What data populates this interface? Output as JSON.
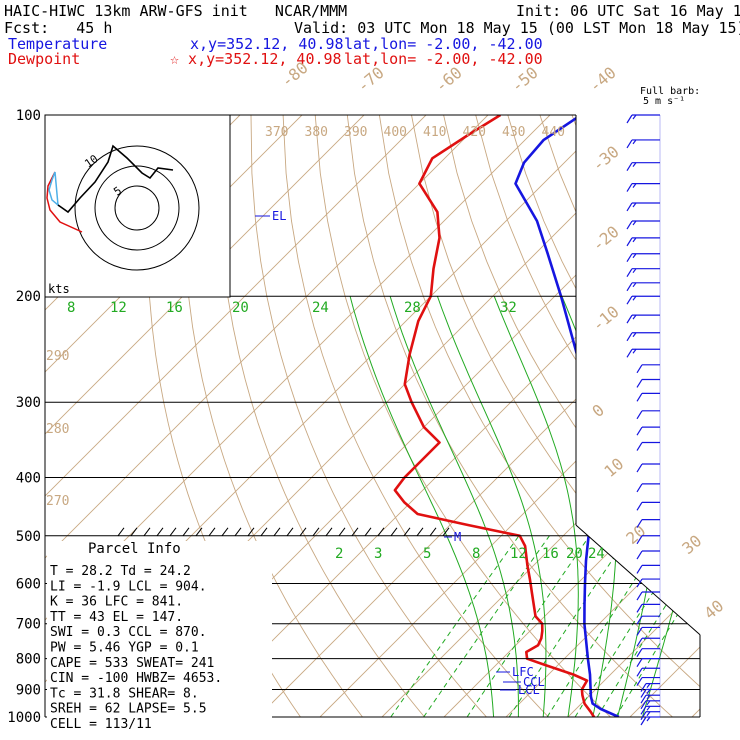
{
  "header": {
    "title": "HAIC-HIWC 13km ARW-GFS init   NCAR/MMM",
    "init": "Init: 06 UTC Sat 16 May 15",
    "fcst": "Fcst:   45 h",
    "valid": "Valid: 03 UTC Mon 18 May 15 (00 LST Mon 18 May 15)",
    "temp_label": "Temperature",
    "temp_xy": "x,y=352.12, 40.98",
    "temp_latlon": "lat,lon= -2.00, -42.00",
    "dew_label": "Dewpoint",
    "dew_xy": "☆ x,y=352.12, 40.98",
    "dew_latlon": "lat,lon= -2.00, -42.00",
    "barb_title": "Full barb:",
    "barb_unit": "5 m s⁻¹"
  },
  "colors": {
    "temperature": "#1616e0",
    "dewpoint": "#e01010",
    "adiabat": "#c8a882",
    "mixing": "#22aa22"
  },
  "chart_data": {
    "type": "line",
    "title": "Skew-T log-P sounding",
    "pressure_levels": [
      {
        "p": 100,
        "label": "100"
      },
      {
        "p": 200,
        "label": "200"
      },
      {
        "p": 300,
        "label": "300"
      },
      {
        "p": 400,
        "label": "400"
      },
      {
        "p": 500,
        "label": "500"
      },
      {
        "p": 600,
        "label": "600"
      },
      {
        "p": 700,
        "label": "700"
      },
      {
        "p": 800,
        "label": "800"
      },
      {
        "p": 900,
        "label": "900"
      },
      {
        "p": 1000,
        "label": "1000"
      }
    ],
    "series": [
      {
        "name": "Temperature",
        "color": "#1616e0",
        "points": [
          [
            1000,
            28.2
          ],
          [
            970,
            24.0
          ],
          [
            950,
            21.8
          ],
          [
            925,
            20.4
          ],
          [
            900,
            19.2
          ],
          [
            850,
            16.7
          ],
          [
            800,
            13.8
          ],
          [
            750,
            10.8
          ],
          [
            700,
            7.6
          ],
          [
            650,
            4.5
          ],
          [
            600,
            1.2
          ],
          [
            550,
            -2.3
          ],
          [
            500,
            -5.9
          ],
          [
            450,
            -9.5
          ],
          [
            400,
            -14.0
          ],
          [
            350,
            -19.8
          ],
          [
            300,
            -27.0
          ],
          [
            250,
            -37.0
          ],
          [
            200,
            -49.0
          ],
          [
            170,
            -58.0
          ],
          [
            150,
            -65.0
          ],
          [
            130,
            -74.5
          ],
          [
            120,
            -76.5
          ],
          [
            110,
            -77.0
          ],
          [
            100,
            -75.0
          ]
        ]
      },
      {
        "name": "Dewpoint",
        "color": "#e01010",
        "points": [
          [
            1000,
            24.2
          ],
          [
            980,
            22.8
          ],
          [
            950,
            20.5
          ],
          [
            920,
            18.8
          ],
          [
            900,
            17.8
          ],
          [
            870,
            17.2
          ],
          [
            850,
            14.0
          ],
          [
            820,
            8.0
          ],
          [
            800,
            4.0
          ],
          [
            780,
            2.8
          ],
          [
            760,
            3.6
          ],
          [
            740,
            3.0
          ],
          [
            720,
            2.0
          ],
          [
            700,
            0.8
          ],
          [
            680,
            -1.5
          ],
          [
            650,
            -3.7
          ],
          [
            620,
            -6.0
          ],
          [
            590,
            -8.4
          ],
          [
            560,
            -11.0
          ],
          [
            520,
            -14.5
          ],
          [
            500,
            -17.0
          ],
          [
            480,
            -27.0
          ],
          [
            460,
            -37.0
          ],
          [
            440,
            -41.0
          ],
          [
            420,
            -44.5
          ],
          [
            400,
            -45.0
          ],
          [
            380,
            -45.0
          ],
          [
            350,
            -45.0
          ],
          [
            330,
            -50.0
          ],
          [
            300,
            -56.0
          ],
          [
            280,
            -60.0
          ],
          [
            250,
            -64.0
          ],
          [
            220,
            -68.0
          ],
          [
            200,
            -70.0
          ],
          [
            180,
            -74.0
          ],
          [
            160,
            -78.0
          ],
          [
            145,
            -82.5
          ],
          [
            130,
            -90.0
          ],
          [
            118,
            -92.0
          ],
          [
            108,
            -90.0
          ],
          [
            100,
            -88.0
          ]
        ]
      }
    ],
    "isotherm_labels": [
      "-80",
      "-70",
      "-60",
      "-50",
      "-40",
      "-30",
      "-20",
      "-10",
      "0",
      "10",
      "20",
      "30",
      "40"
    ],
    "theta_labels": [
      "370",
      "380",
      "390",
      "400",
      "410",
      "420",
      "430",
      "440"
    ],
    "theta_labels_left": [
      "290",
      "280",
      "270"
    ],
    "theta_e_labels": [
      "8",
      "12",
      "16",
      "20",
      "24",
      "28",
      "32"
    ],
    "mixing_ratio_labels": [
      "2",
      "3",
      "5",
      "8",
      "12",
      "16",
      "20",
      "24"
    ],
    "level_markers": [
      {
        "p": 150,
        "label": "EL"
      },
      {
        "p": 500,
        "label": "M"
      },
      {
        "p": 838,
        "label": "LFC"
      },
      {
        "p": 868,
        "label": "CCL"
      },
      {
        "p": 900,
        "label": "LCL"
      }
    ],
    "hodograph": {
      "label": "kts",
      "ring_labels": [
        "5",
        "10"
      ]
    },
    "wind_barbs": [
      {
        "p": 100,
        "speed": 15
      },
      {
        "p": 110,
        "speed": 15
      },
      {
        "p": 120,
        "speed": 15
      },
      {
        "p": 130,
        "speed": 15
      },
      {
        "p": 140,
        "speed": 15
      },
      {
        "p": 150,
        "speed": 15
      },
      {
        "p": 160,
        "speed": 15
      },
      {
        "p": 170,
        "speed": 15
      },
      {
        "p": 180,
        "speed": 15
      },
      {
        "p": 190,
        "speed": 15
      },
      {
        "p": 200,
        "speed": 15
      },
      {
        "p": 215,
        "speed": 15
      },
      {
        "p": 230,
        "speed": 15
      },
      {
        "p": 245,
        "speed": 15
      },
      {
        "p": 260,
        "speed": 10
      },
      {
        "p": 275,
        "speed": 10
      },
      {
        "p": 290,
        "speed": 10
      },
      {
        "p": 310,
        "speed": 10
      },
      {
        "p": 330,
        "speed": 10
      },
      {
        "p": 350,
        "speed": 10
      },
      {
        "p": 380,
        "speed": 10
      },
      {
        "p": 410,
        "speed": 10
      },
      {
        "p": 440,
        "speed": 10
      },
      {
        "p": 470,
        "speed": 10
      },
      {
        "p": 500,
        "speed": 10
      },
      {
        "p": 530,
        "speed": 10
      },
      {
        "p": 560,
        "speed": 10
      },
      {
        "p": 590,
        "speed": 10
      },
      {
        "p": 620,
        "speed": 10
      },
      {
        "p": 650,
        "speed": 10
      },
      {
        "p": 680,
        "speed": 10
      },
      {
        "p": 710,
        "speed": 10
      },
      {
        "p": 740,
        "speed": 10
      },
      {
        "p": 770,
        "speed": 10
      },
      {
        "p": 800,
        "speed": 10
      },
      {
        "p": 830,
        "speed": 10
      },
      {
        "p": 860,
        "speed": 10
      },
      {
        "p": 880,
        "speed": 15
      },
      {
        "p": 900,
        "speed": 15
      },
      {
        "p": 920,
        "speed": 15
      },
      {
        "p": 940,
        "speed": 15
      },
      {
        "p": 960,
        "speed": 15
      },
      {
        "p": 980,
        "speed": 15
      },
      {
        "p": 1000,
        "speed": 15
      }
    ]
  },
  "parcel_info": {
    "title": "Parcel Info",
    "rows": [
      "T  =    28.2  Td =  24.2",
      "LI =    -1.9  LCL =  904.",
      "K  =      36  LFC =  841.",
      "TT =      43  EL  =  147.",
      "SWI =    0.3  CCL =  870.",
      "PW =    5.46  YGP =   0.1",
      "CAPE =   533  SWEAT=  241",
      "CIN =   -100  HWBZ= 4653.",
      "Tc =    31.8  SHEAR=   8.",
      "SREH =    62  LAPSE=  5.5",
      "CELL = 113/11"
    ]
  }
}
